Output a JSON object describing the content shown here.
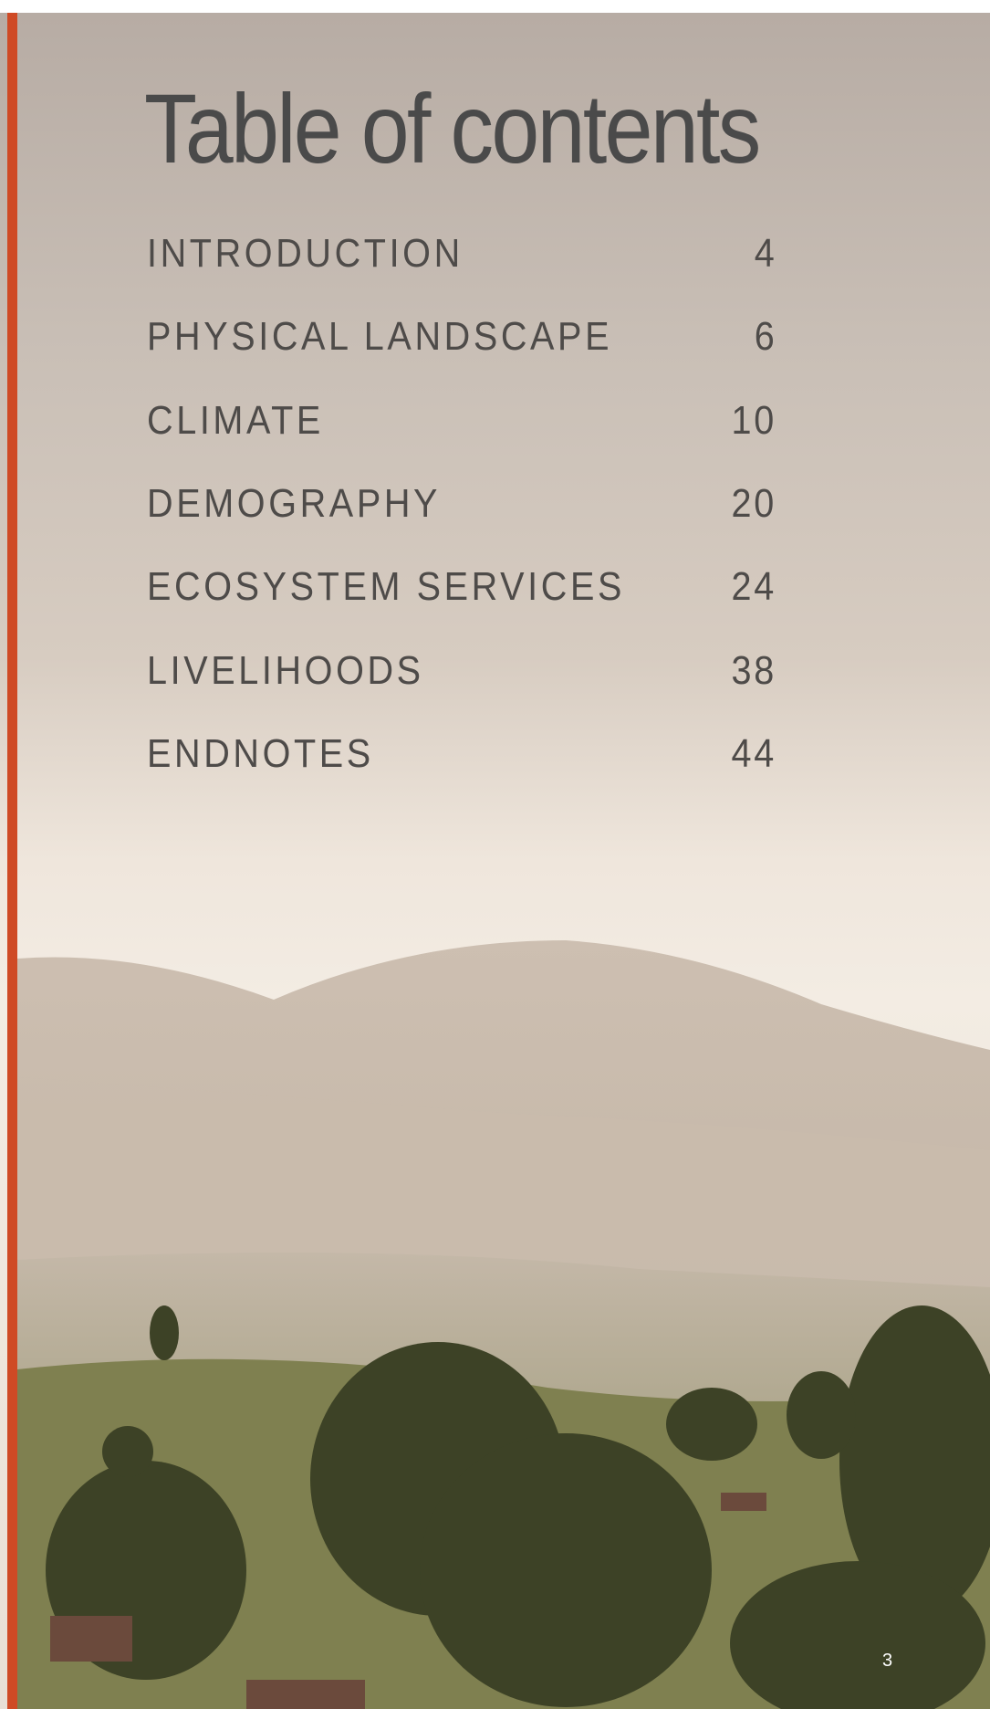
{
  "title": "Table of contents",
  "entries": [
    {
      "label": "INTRODUCTION",
      "page": 4
    },
    {
      "label": "PHYSICAL LANDSCAPE",
      "page": 6
    },
    {
      "label": "CLIMATE",
      "page": 10
    },
    {
      "label": "DEMOGRAPHY",
      "page": 20
    },
    {
      "label": "ECOSYSTEM SERVICES",
      "page": 24
    },
    {
      "label": "LIVELIHOODS",
      "page": 38
    },
    {
      "label": "ENDNOTES",
      "page": 44
    }
  ],
  "page_number": 3
}
